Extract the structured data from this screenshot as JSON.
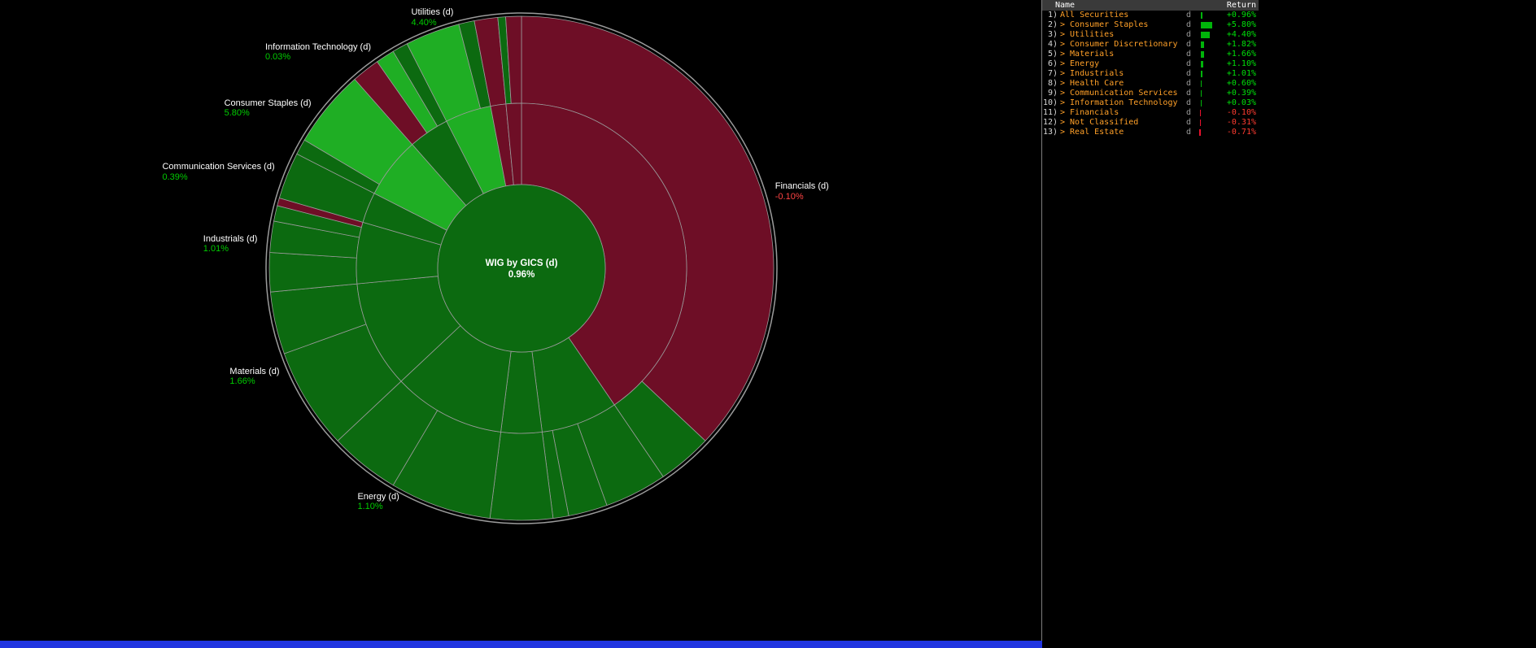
{
  "app": {
    "background": "#000000",
    "bottom_bar_color": "#2135e0",
    "divider_color": "#7d7d7d"
  },
  "chart_data": {
    "type": "sunburst",
    "title": "WIG by GICS (d)",
    "center_label": "WIG by GICS (d)",
    "center_value": "0.96%",
    "unit": "daily return %",
    "palette": {
      "pos": "#0c6a10",
      "bright": "#1fae24",
      "neg": "#6e0e26",
      "outline": "#9b9b9b",
      "label_pos": "#00cc00",
      "label_neg": "#ff4444"
    },
    "sectors": [
      {
        "name": "Financials (d)",
        "return": "-0.10%",
        "weight": 40.5,
        "tone": "neg",
        "label": true,
        "children": [
          {
            "weight": 37.0,
            "tone": "neg"
          },
          {
            "weight": 3.5,
            "tone": "pos"
          }
        ]
      },
      {
        "name": "Consumer Discretionary (d)",
        "return": "1.82%",
        "weight": 7.5,
        "tone": "pos",
        "label": false,
        "children": [
          {
            "weight": 4.0,
            "tone": "pos"
          },
          {
            "weight": 2.5,
            "tone": "pos"
          },
          {
            "weight": 1.0,
            "tone": "pos"
          }
        ]
      },
      {
        "name": "Health Care (d)",
        "return": "0.60%",
        "weight": 4.0,
        "tone": "pos",
        "label": false,
        "children": [
          {
            "weight": 4.0,
            "tone": "pos"
          }
        ]
      },
      {
        "name": "Energy (d)",
        "return": "1.10%",
        "weight": 11.0,
        "tone": "pos",
        "label": true,
        "children": [
          {
            "weight": 6.5,
            "tone": "pos"
          },
          {
            "weight": 4.5,
            "tone": "pos"
          }
        ]
      },
      {
        "name": "Materials (d)",
        "return": "1.66%",
        "weight": 10.5,
        "tone": "pos",
        "label": true,
        "children": [
          {
            "weight": 6.5,
            "tone": "pos"
          },
          {
            "weight": 4.0,
            "tone": "pos"
          }
        ]
      },
      {
        "name": "Industrials (d)",
        "return": "1.01%",
        "weight": 6.0,
        "tone": "pos",
        "label": true,
        "children": [
          {
            "weight": 2.5,
            "tone": "pos"
          },
          {
            "weight": 2.0,
            "tone": "pos"
          },
          {
            "weight": 1.0,
            "tone": "pos"
          },
          {
            "weight": 0.5,
            "tone": "neg"
          }
        ]
      },
      {
        "name": "Communication Services (d)",
        "return": "0.39%",
        "weight": 3.0,
        "tone": "pos",
        "label": true,
        "children": [
          {
            "weight": 3.0,
            "tone": "pos"
          }
        ]
      },
      {
        "name": "Consumer Staples (d)",
        "return": "5.80%",
        "weight": 6.0,
        "tone": "bright",
        "label": true,
        "children": [
          {
            "weight": 1.0,
            "tone": "pos"
          },
          {
            "weight": 5.0,
            "tone": "bright"
          }
        ]
      },
      {
        "name": "Information Technology (d)",
        "return": "0.03%",
        "weight": 4.0,
        "tone": "pos",
        "label": true,
        "children": [
          {
            "weight": 1.8,
            "tone": "neg"
          },
          {
            "weight": 1.2,
            "tone": "bright"
          },
          {
            "weight": 1.0,
            "tone": "pos"
          }
        ]
      },
      {
        "name": "Utilities (d)",
        "return": "4.40%",
        "weight": 4.5,
        "tone": "bright",
        "label": true,
        "children": [
          {
            "weight": 3.5,
            "tone": "bright"
          },
          {
            "weight": 1.0,
            "tone": "pos"
          }
        ]
      },
      {
        "name": "Not Classified (d)",
        "return": "-0.31%",
        "weight": 1.5,
        "tone": "neg",
        "label": false,
        "children": [
          {
            "weight": 1.5,
            "tone": "neg"
          }
        ]
      },
      {
        "name": "Real Estate (d)",
        "return": "-0.71%",
        "weight": 1.5,
        "tone": "neg",
        "label": false,
        "children": [
          {
            "weight": 0.5,
            "tone": "pos"
          },
          {
            "weight": 1.0,
            "tone": "neg"
          }
        ]
      }
    ]
  },
  "panel": {
    "columns": [
      "Name",
      "Return"
    ],
    "bar_scale_max": 5.8,
    "rows": [
      {
        "num": "1)",
        "name": "All Securities",
        "child": false,
        "flag": "d",
        "return": "+0.96%",
        "value": 0.96
      },
      {
        "num": "2)",
        "name": "Consumer Staples",
        "child": true,
        "flag": "d",
        "return": "+5.80%",
        "value": 5.8
      },
      {
        "num": "3)",
        "name": "Utilities",
        "child": true,
        "flag": "d",
        "return": "+4.40%",
        "value": 4.4
      },
      {
        "num": "4)",
        "name": "Consumer Discretionary",
        "child": true,
        "flag": "d",
        "return": "+1.82%",
        "value": 1.82
      },
      {
        "num": "5)",
        "name": "Materials",
        "child": true,
        "flag": "d",
        "return": "+1.66%",
        "value": 1.66
      },
      {
        "num": "6)",
        "name": "Energy",
        "child": true,
        "flag": "d",
        "return": "+1.10%",
        "value": 1.1
      },
      {
        "num": "7)",
        "name": "Industrials",
        "child": true,
        "flag": "d",
        "return": "+1.01%",
        "value": 1.01
      },
      {
        "num": "8)",
        "name": "Health Care",
        "child": true,
        "flag": "d",
        "return": "+0.60%",
        "value": 0.6
      },
      {
        "num": "9)",
        "name": "Communication Services",
        "child": true,
        "flag": "d",
        "return": "+0.39%",
        "value": 0.39
      },
      {
        "num": "10)",
        "name": "Information Technology",
        "child": true,
        "flag": "d",
        "return": "+0.03%",
        "value": 0.03
      },
      {
        "num": "11)",
        "name": "Financials",
        "child": true,
        "flag": "d",
        "return": "-0.10%",
        "value": -0.1
      },
      {
        "num": "12)",
        "name": "Not Classified",
        "child": true,
        "flag": "d",
        "return": "-0.31%",
        "value": -0.31
      },
      {
        "num": "13)",
        "name": "Real Estate",
        "child": true,
        "flag": "d",
        "return": "-0.71%",
        "value": -0.71
      }
    ]
  }
}
